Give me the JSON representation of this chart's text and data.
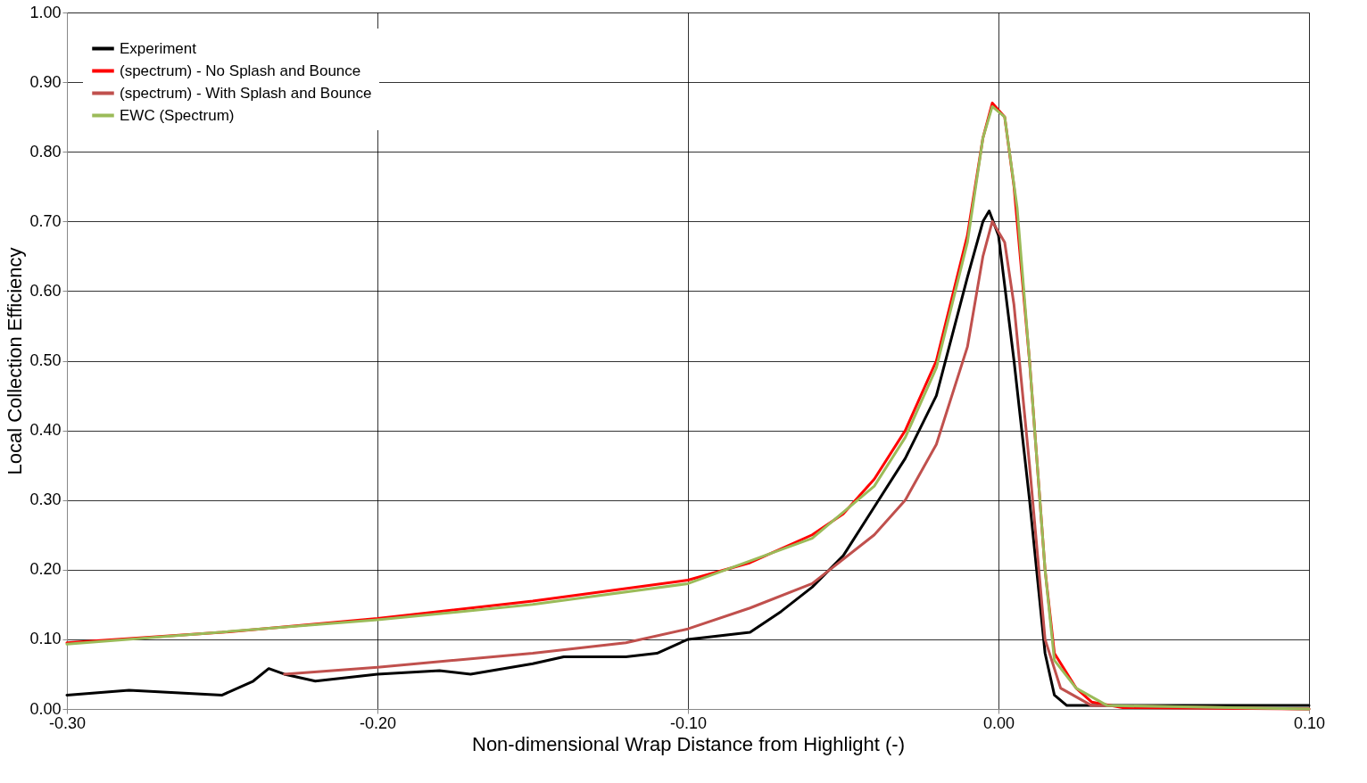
{
  "chart_data": {
    "type": "line",
    "xlabel": "Non-dimensional Wrap Distance from Highlight (-)",
    "ylabel": "Local Collection Efficiency",
    "xlim": [
      -0.3,
      0.1
    ],
    "ylim": [
      0,
      1
    ],
    "xticks": [
      {
        "value": -0.3,
        "label": "-0.30"
      },
      {
        "value": -0.2,
        "label": "-0.20"
      },
      {
        "value": -0.1,
        "label": "-0.10"
      },
      {
        "value": 0,
        "label": "0.00"
      },
      {
        "value": 0.1,
        "label": "0.10"
      }
    ],
    "yticks": [
      {
        "value": 0,
        "label": "0.00"
      },
      {
        "value": 0.1,
        "label": "0.10"
      },
      {
        "value": 0.2,
        "label": "0.20"
      },
      {
        "value": 0.3,
        "label": "0.30"
      },
      {
        "value": 0.4,
        "label": "0.40"
      },
      {
        "value": 0.5,
        "label": "0.50"
      },
      {
        "value": 0.6,
        "label": "0.60"
      },
      {
        "value": 0.7,
        "label": "0.70"
      },
      {
        "value": 0.8,
        "label": "0.80"
      },
      {
        "value": 0.9,
        "label": "0.90"
      },
      {
        "value": 1,
        "label": "1.00"
      }
    ],
    "grid": true,
    "legend": "top left",
    "line_style": "solid",
    "marker": "none",
    "series": [
      {
        "name": "Experiment",
        "color": "#000000",
        "x": [
          -0.3,
          -0.28,
          -0.25,
          -0.24,
          -0.235,
          -0.23,
          -0.22,
          -0.2,
          -0.18,
          -0.17,
          -0.15,
          -0.14,
          -0.12,
          -0.11,
          -0.1,
          -0.08,
          -0.07,
          -0.06,
          -0.05,
          -0.04,
          -0.03,
          -0.02,
          -0.01,
          -0.005,
          -0.003,
          0.0,
          0.005,
          0.01,
          0.015,
          0.018,
          0.022,
          0.03,
          0.1
        ],
        "values": [
          0.02,
          0.027,
          0.02,
          0.04,
          0.058,
          0.05,
          0.04,
          0.05,
          0.055,
          0.05,
          0.065,
          0.075,
          0.075,
          0.08,
          0.1,
          0.11,
          0.14,
          0.175,
          0.22,
          0.29,
          0.36,
          0.45,
          0.62,
          0.7,
          0.715,
          0.68,
          0.5,
          0.3,
          0.08,
          0.02,
          0.005,
          0.005,
          0.005
        ]
      },
      {
        "name": "(spectrum) - No Splash and Bounce",
        "color": "#ff0000",
        "x": [
          -0.3,
          -0.25,
          -0.2,
          -0.15,
          -0.1,
          -0.08,
          -0.06,
          -0.05,
          -0.04,
          -0.03,
          -0.02,
          -0.01,
          -0.005,
          -0.002,
          0.002,
          0.005,
          0.01,
          0.015,
          0.018,
          0.025,
          0.03,
          0.04,
          0.1
        ],
        "values": [
          0.095,
          0.11,
          0.13,
          0.155,
          0.185,
          0.21,
          0.25,
          0.28,
          0.33,
          0.4,
          0.5,
          0.68,
          0.82,
          0.87,
          0.85,
          0.75,
          0.5,
          0.2,
          0.08,
          0.03,
          0.01,
          0.002,
          0.0
        ]
      },
      {
        "name": "(spectrum) - With Splash and Bounce",
        "color": "#c0504d",
        "x": [
          -0.23,
          -0.2,
          -0.15,
          -0.12,
          -0.1,
          -0.08,
          -0.06,
          -0.04,
          -0.03,
          -0.02,
          -0.01,
          -0.005,
          -0.002,
          0.002,
          0.005,
          0.01,
          0.015,
          0.02,
          0.03,
          0.1
        ],
        "values": [
          0.05,
          0.06,
          0.08,
          0.095,
          0.115,
          0.145,
          0.18,
          0.25,
          0.3,
          0.38,
          0.52,
          0.65,
          0.7,
          0.67,
          0.58,
          0.35,
          0.1,
          0.03,
          0.005,
          0.0
        ]
      },
      {
        "name": "EWC (Spectrum)",
        "color": "#9bbb59",
        "x": [
          -0.3,
          -0.2,
          -0.15,
          -0.1,
          -0.06,
          -0.04,
          -0.03,
          -0.02,
          -0.01,
          -0.005,
          -0.002,
          0.002,
          0.006,
          0.01,
          0.015,
          0.018,
          0.025,
          0.035,
          0.1
        ],
        "values": [
          0.093,
          0.128,
          0.15,
          0.18,
          0.245,
          0.32,
          0.39,
          0.49,
          0.67,
          0.82,
          0.865,
          0.85,
          0.72,
          0.5,
          0.2,
          0.07,
          0.03,
          0.005,
          0.0
        ]
      }
    ]
  }
}
